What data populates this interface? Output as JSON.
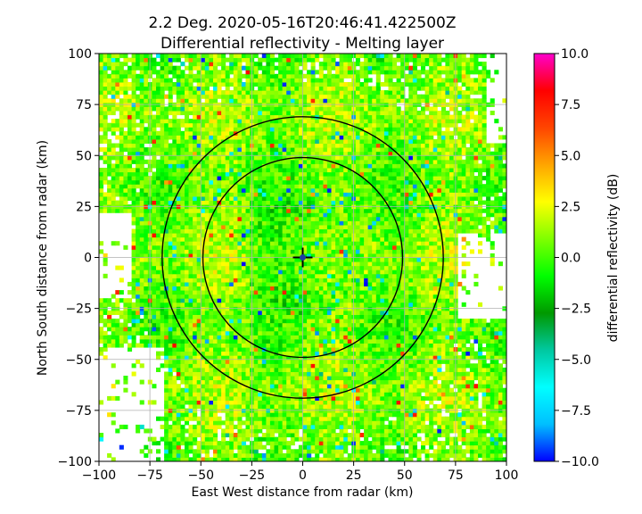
{
  "chart_data": {
    "type": "heatmap",
    "title": "2.2 Deg. 2020-05-16T20:46:41.422500Z",
    "subtitle": "Differential reflectivity - Melting layer",
    "xlabel": "East West distance from radar (km)",
    "ylabel": "North South distance from radar (km)",
    "xlim": [
      -100,
      100
    ],
    "ylim": [
      -100,
      100
    ],
    "x_ticks": [
      -100,
      -75,
      -50,
      -25,
      0,
      25,
      50,
      75,
      100
    ],
    "y_ticks": [
      -100,
      -75,
      -50,
      -25,
      0,
      25,
      50,
      75,
      100
    ],
    "x_tick_labels": [
      "−100",
      "−75",
      "−50",
      "−25",
      "0",
      "25",
      "50",
      "75",
      "100"
    ],
    "y_tick_labels": [
      "−100",
      "−75",
      "−50",
      "−25",
      "0",
      "25",
      "50",
      "75",
      "100"
    ],
    "grid": true,
    "melting_layer_rings_km": [
      49,
      69
    ],
    "radar_location": [
      0,
      0
    ],
    "colorbar": {
      "label": "differential reflectivity (dB)",
      "range": [
        -10,
        10
      ],
      "ticks": [
        -10,
        -7.5,
        -5,
        -2.5,
        0,
        2.5,
        5,
        7.5,
        10
      ],
      "tick_labels": [
        "−10.0",
        "−7.5",
        "−5.0",
        "−2.5",
        "0.0",
        "2.5",
        "5.0",
        "7.5",
        "10.0"
      ],
      "colors": [
        "#0000ff",
        "#00bfff",
        "#00ffff",
        "#00c8a0",
        "#009900",
        "#00ff00",
        "#7fff00",
        "#ffff00",
        "#ffa500",
        "#ff4500",
        "#ff0000",
        "#ff00cc"
      ]
    },
    "field_dominant_range_db": [
      -1,
      2.5
    ],
    "no_data_regions": [
      {
        "description": "west edge",
        "x": [
          -100,
          -85
        ],
        "y": [
          -20,
          20
        ]
      },
      {
        "description": "southwest",
        "x": [
          -100,
          -70
        ],
        "y": [
          -100,
          -45
        ]
      },
      {
        "description": "east",
        "x": [
          75,
          100
        ],
        "y": [
          -30,
          10
        ]
      },
      {
        "description": "northeast",
        "x": [
          90,
          100
        ],
        "y": [
          55,
          100
        ]
      }
    ]
  }
}
